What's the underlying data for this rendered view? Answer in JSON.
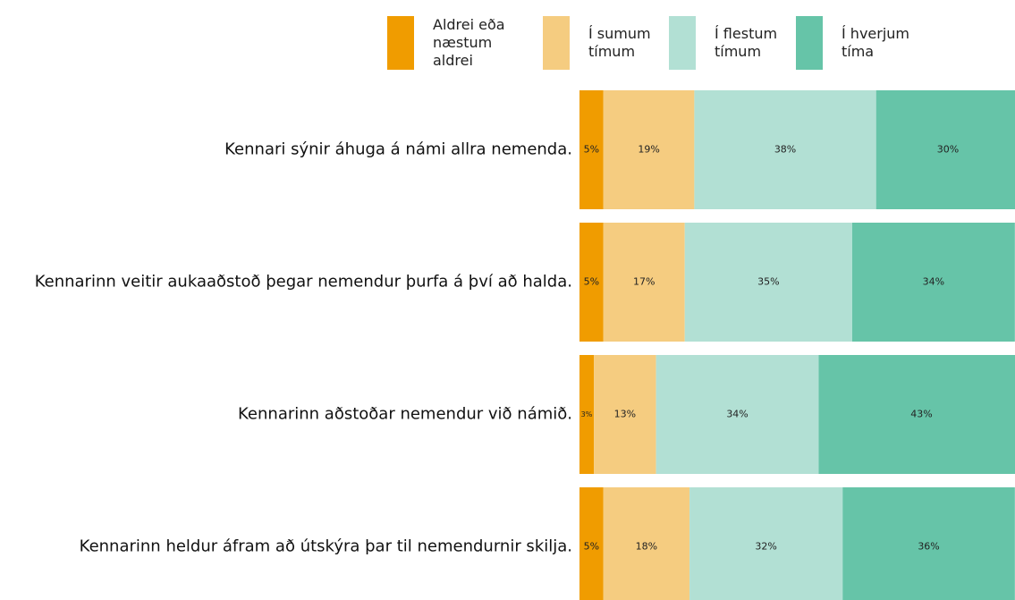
{
  "chart_data": {
    "type": "stacked-bar-horizontal",
    "categories": [
      "Kennari sýnir áhuga á námi allra nemenda.",
      "Kennarinn veitir aukaaðstoð þegar nemendur þurfa á því að halda.",
      "Kennarinn aðstoðar nemendur við námið.",
      "Kennarinn heldur áfram að útskýra þar til nemendurnir skilja."
    ],
    "series": [
      {
        "name": "Aldrei eða næstum aldrei",
        "color": "#f09c00",
        "values": [
          5,
          5,
          3,
          5
        ],
        "value_labels": [
          "5%",
          "5%",
          "3%",
          "5%"
        ]
      },
      {
        "name": "Í sumum tímum",
        "color": "#f5cc80",
        "values": [
          19,
          17,
          13,
          18
        ],
        "value_labels": [
          "19%",
          "17%",
          "13%",
          "18%"
        ]
      },
      {
        "name": "Í flestum tímum",
        "color": "#b2e0d4",
        "values": [
          38,
          35,
          34,
          32
        ],
        "value_labels": [
          "38%",
          "35%",
          "34%",
          "32%"
        ]
      },
      {
        "name": "Í hverjum tíma",
        "color": "#66c4a8",
        "values": [
          30,
          34,
          43,
          36
        ],
        "value_labels": [
          "30%",
          "34%",
          "43%",
          "36%"
        ]
      }
    ],
    "legend": "top"
  }
}
